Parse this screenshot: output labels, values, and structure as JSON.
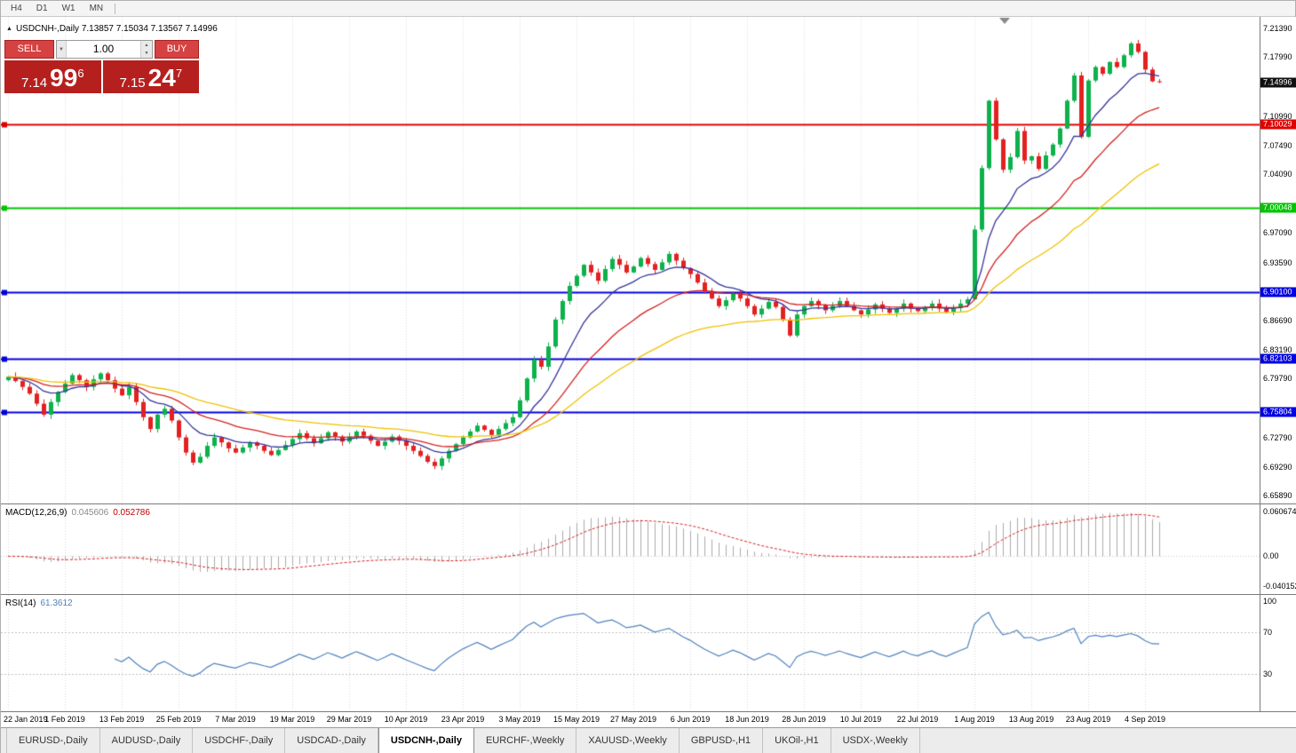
{
  "toolbar": {
    "timeframes": [
      "H4",
      "D1",
      "W1",
      "MN"
    ]
  },
  "chart": {
    "collapse_icon": "▲",
    "title": "USDCNH-,Daily 7.13857 7.15034 7.13567 7.14996"
  },
  "one_click": {
    "sell_label": "SELL",
    "buy_label": "BUY",
    "lot_value": "1.00",
    "dropdown_icon": "▼",
    "spin_up_icon": "▲",
    "spin_down_icon": "▼",
    "sell_price": {
      "main": "7.14",
      "pips": "99",
      "sup": "6"
    },
    "buy_price": {
      "main": "7.15",
      "pips": "24",
      "sup": "7"
    }
  },
  "macd": {
    "name": "MACD(12,26,9)",
    "value1": "0.045606",
    "value2": "0.052786",
    "ticks": [
      "0.060674",
      "0.00",
      "-0.040152"
    ]
  },
  "rsi": {
    "name": "RSI(14)",
    "value": "61.3612",
    "ticks": [
      "100",
      "70",
      "30"
    ]
  },
  "tabs": {
    "active_index": 4,
    "items": [
      "EURUSD-,Daily",
      "AUDUSD-,Daily",
      "USDCHF-,Daily",
      "USDCAD-,Daily",
      "USDCNH-,Daily",
      "EURCHF-,Weekly",
      "XAUUSD-,Weekly",
      "GBPUSD-,H1",
      "UKOil-,H1",
      "USDX-,Weekly"
    ]
  },
  "chart_data": {
    "type": "candlestick",
    "symbol": "USDCNH-",
    "timeframe": "Daily",
    "current": {
      "open": 7.13857,
      "high": 7.15034,
      "low": 7.13567,
      "close": 7.14996
    },
    "y_range": [
      6.6495,
      7.2276
    ],
    "price_ticks": [
      "7.21390",
      "7.17990",
      "7.10990",
      "7.07490",
      "7.04090",
      "6.97090",
      "6.93590",
      "6.86690",
      "6.83190",
      "6.79790",
      "6.72790",
      "6.69290",
      "6.65890"
    ],
    "price_tags": [
      {
        "value": "7.14996",
        "color": "#101010",
        "type": "last-price"
      },
      {
        "value": "7.10029",
        "color": "#e00000",
        "type": "horizontal-line"
      },
      {
        "value": "7.00048",
        "color": "#00c400",
        "type": "horizontal-line"
      },
      {
        "value": "6.90100",
        "color": "#0000e0",
        "type": "horizontal-line"
      },
      {
        "value": "6.82103",
        "color": "#0000e0",
        "type": "horizontal-line"
      },
      {
        "value": "6.75804",
        "color": "#0000e0",
        "type": "horizontal-line"
      }
    ],
    "levels": [
      {
        "price": 7.10029,
        "color": "#e00000"
      },
      {
        "price": 7.00048,
        "color": "#00c400"
      },
      {
        "price": 6.901,
        "color": "#0000e0"
      },
      {
        "price": 6.82103,
        "color": "#0000e0"
      },
      {
        "price": 6.75804,
        "color": "#0000e0"
      }
    ],
    "x_labels": [
      "22 Jan 2019",
      "1 Feb 2019",
      "13 Feb 2019",
      "25 Feb 2019",
      "7 Mar 2019",
      "19 Mar 2019",
      "29 Mar 2019",
      "10 Apr 2019",
      "23 Apr 2019",
      "3 May 2019",
      "15 May 2019",
      "27 May 2019",
      "6 Jun 2019",
      "18 Jun 2019",
      "28 Jun 2019",
      "10 Jul 2019",
      "22 Jul 2019",
      "1 Aug 2019",
      "13 Aug 2019",
      "23 Aug 2019",
      "4 Sep 2019"
    ],
    "candles_per_label": 8,
    "closes": [
      6.8,
      6.795,
      6.788,
      6.78,
      6.768,
      6.755,
      6.77,
      6.782,
      6.792,
      6.802,
      6.796,
      6.788,
      6.797,
      6.804,
      6.796,
      6.786,
      6.778,
      6.788,
      6.77,
      6.752,
      6.738,
      6.755,
      6.762,
      6.748,
      6.728,
      6.71,
      6.698,
      6.705,
      6.718,
      6.728,
      6.722,
      6.715,
      6.71,
      6.716,
      6.722,
      6.718,
      6.712,
      6.707,
      6.713,
      6.719,
      6.726,
      6.733,
      6.727,
      6.721,
      6.727,
      6.734,
      6.729,
      6.723,
      6.729,
      6.735,
      6.73,
      6.724,
      6.718,
      6.723,
      6.729,
      6.724,
      6.718,
      6.712,
      6.706,
      6.699,
      6.694,
      6.703,
      6.712,
      6.72,
      6.728,
      6.735,
      6.742,
      6.737,
      6.731,
      6.738,
      6.745,
      6.752,
      6.772,
      6.798,
      6.82,
      6.812,
      6.836,
      6.868,
      6.89,
      6.908,
      6.92,
      6.933,
      6.924,
      6.914,
      6.928,
      6.94,
      6.933,
      6.924,
      6.931,
      6.941,
      6.934,
      6.927,
      6.936,
      6.946,
      6.938,
      6.929,
      6.922,
      6.912,
      6.902,
      6.893,
      6.884,
      6.891,
      6.899,
      6.893,
      6.884,
      6.874,
      6.881,
      6.889,
      6.883,
      6.868,
      6.849,
      6.874,
      6.884,
      6.89,
      6.885,
      6.879,
      6.884,
      6.89,
      6.884,
      6.879,
      6.874,
      6.88,
      6.886,
      6.881,
      6.876,
      6.881,
      6.887,
      6.881,
      6.878,
      6.883,
      6.887,
      6.881,
      6.877,
      6.882,
      6.887,
      6.892,
      6.975,
      7.048,
      7.128,
      7.082,
      7.046,
      7.061,
      7.092,
      7.057,
      7.062,
      7.047,
      7.063,
      7.076,
      7.095,
      7.128,
      7.158,
      7.085,
      7.152,
      7.168,
      7.16,
      7.174,
      7.168,
      7.182,
      7.196,
      7.186,
      7.165,
      7.151,
      7.14996
    ],
    "candle_colors": {
      "up": "#0db14b",
      "down": "#e32020"
    },
    "moving_averages": [
      {
        "period": 10,
        "color": "#34349b"
      },
      {
        "period": 22,
        "color": "#d42020"
      },
      {
        "period": 45,
        "color": "#efc000"
      }
    ],
    "macd": {
      "fast": 12,
      "slow": 26,
      "signal": 9,
      "hist_color": "#ababab",
      "signal_color": "#d42020",
      "y_range": [
        -0.0509,
        0.0698
      ]
    },
    "rsi": {
      "period": 14,
      "color": "#4f81bd",
      "levels": [
        70,
        30
      ],
      "y_range": [
        -5.5,
        106
      ]
    }
  }
}
